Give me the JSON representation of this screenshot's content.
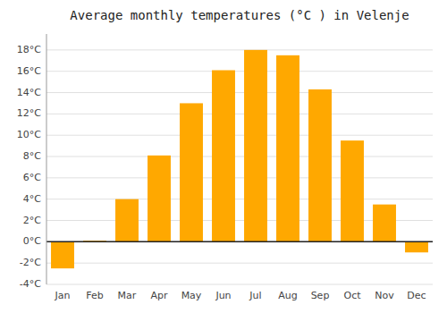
{
  "chart_data": {
    "type": "bar",
    "title": "Average monthly temperatures (°C ) in Velenje",
    "categories": [
      "Jan",
      "Feb",
      "Mar",
      "Apr",
      "May",
      "Jun",
      "Jul",
      "Aug",
      "Sep",
      "Oct",
      "Nov",
      "Dec"
    ],
    "values": [
      -2.5,
      0.1,
      4.0,
      8.1,
      13.0,
      16.1,
      18.0,
      17.5,
      14.3,
      9.5,
      3.5,
      -1.0
    ],
    "color": "#FFA800",
    "ylim": [
      -4,
      19.5
    ],
    "yticks": [
      {
        "value": -4,
        "label": "-4°C"
      },
      {
        "value": -2,
        "label": "-2°C"
      },
      {
        "value": 0,
        "label": "0°C"
      },
      {
        "value": 2,
        "label": "2°C"
      },
      {
        "value": 4,
        "label": "4°C"
      },
      {
        "value": 6,
        "label": "6°C"
      },
      {
        "value": 8,
        "label": "8°C"
      },
      {
        "value": 10,
        "label": "10°C"
      },
      {
        "value": 12,
        "label": "12°C"
      },
      {
        "value": 14,
        "label": "14°C"
      },
      {
        "value": 16,
        "label": "16°C"
      },
      {
        "value": 18,
        "label": "18°C"
      }
    ],
    "grid": true
  }
}
